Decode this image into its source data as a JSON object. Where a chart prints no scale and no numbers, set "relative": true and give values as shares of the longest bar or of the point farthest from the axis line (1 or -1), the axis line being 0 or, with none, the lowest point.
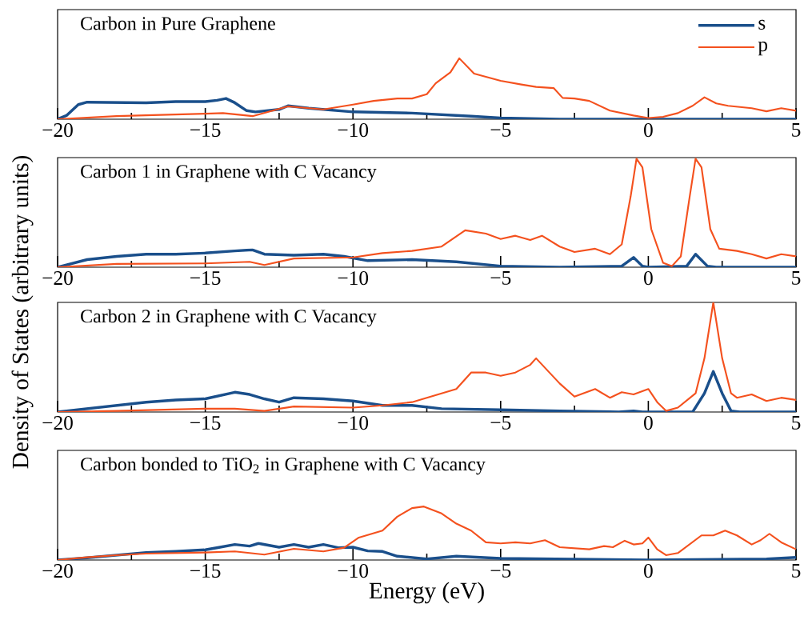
{
  "chart_data": [
    {
      "type": "line",
      "title": "Carbon in Pure Graphene",
      "ylabel": "Density of States (arbitrary units)",
      "relative": true,
      "legend": "top right",
      "xlim": [
        -20,
        5
      ],
      "xticks": [
        {
          "value": -20,
          "label": "−20"
        },
        {
          "value": -15,
          "label": "−15"
        },
        {
          "value": -10,
          "label": "−10"
        },
        {
          "value": -5,
          "label": "−5"
        },
        0,
        5
      ],
      "series": [
        {
          "name": "s",
          "color": "#1a4f8b",
          "x": [
            -20,
            -19.7,
            -19.3,
            -19,
            -17,
            -16,
            -15,
            -14.6,
            -14.3,
            -14,
            -13.6,
            -13.3,
            -12.5,
            -12.2,
            -11.5,
            -10,
            -8,
            -6,
            -5,
            -3,
            5
          ],
          "values": [
            0,
            0.06,
            0.24,
            0.28,
            0.27,
            0.29,
            0.29,
            0.31,
            0.34,
            0.27,
            0.14,
            0.12,
            0.16,
            0.22,
            0.18,
            0.12,
            0.1,
            0.05,
            0.02,
            0,
            0
          ]
        },
        {
          "name": "p",
          "color": "#f4511e",
          "x": [
            -20,
            -18,
            -15,
            -14.4,
            -13.4,
            -12.2,
            -11,
            -10,
            -9.3,
            -8.5,
            -8,
            -7.5,
            -7.2,
            -6.7,
            -6.4,
            -5.9,
            -5,
            -4.3,
            -3.8,
            -3.2,
            -2.9,
            -2.5,
            -2,
            -1.3,
            -0.5,
            0,
            0.5,
            1,
            1.5,
            1.9,
            2.3,
            2.7,
            3.5,
            4,
            4.5,
            5
          ],
          "values": [
            0,
            0.05,
            0.09,
            0.1,
            0.05,
            0.21,
            0.16,
            0.24,
            0.3,
            0.34,
            0.34,
            0.41,
            0.59,
            0.77,
            1.0,
            0.75,
            0.63,
            0.57,
            0.53,
            0.51,
            0.35,
            0.34,
            0.3,
            0.14,
            0.06,
            0.02,
            0.04,
            0.1,
            0.22,
            0.36,
            0.26,
            0.22,
            0.18,
            0.13,
            0.18,
            0.14
          ]
        }
      ]
    },
    {
      "type": "line",
      "title": "Carbon 1 in Graphene with C Vacancy",
      "relative": true,
      "xlim": [
        -20,
        5
      ],
      "xticks": [
        {
          "value": -20,
          "label": "−20"
        },
        {
          "value": -15,
          "label": "−15"
        },
        {
          "value": -10,
          "label": "−10"
        },
        {
          "value": -5,
          "label": "−5"
        },
        0,
        5
      ],
      "series": [
        {
          "color": "#1a4f8b",
          "x": [
            -20,
            -19,
            -18,
            -17,
            -16,
            -15,
            -14,
            -13.4,
            -13,
            -12,
            -11,
            -10.3,
            -9.5,
            -8,
            -6.5,
            -5,
            -3,
            -0.9,
            -0.5,
            -0.2,
            0,
            1.3,
            1.6,
            2,
            2.3,
            5
          ],
          "values": [
            0,
            0.07,
            0.1,
            0.12,
            0.12,
            0.13,
            0.15,
            0.16,
            0.12,
            0.11,
            0.12,
            0.1,
            0.06,
            0.07,
            0.05,
            0.01,
            0,
            0.01,
            0.09,
            0.01,
            0,
            0.01,
            0.12,
            0.01,
            0,
            0
          ]
        },
        {
          "color": "#f4511e",
          "x": [
            -20,
            -18,
            -15,
            -13.5,
            -13,
            -12,
            -10,
            -9,
            -8,
            -7,
            -6.2,
            -5.5,
            -5,
            -4.5,
            -4,
            -3.6,
            -3,
            -2.5,
            -1.8,
            -1.3,
            -0.9,
            -0.6,
            -0.4,
            -0.2,
            0.1,
            0.5,
            0.8,
            1.1,
            1.4,
            1.6,
            1.8,
            2.1,
            2.4,
            3,
            3.5,
            4,
            4.5,
            5
          ],
          "values": [
            0,
            0.03,
            0.035,
            0.05,
            0.02,
            0.08,
            0.09,
            0.13,
            0.15,
            0.19,
            0.34,
            0.31,
            0.26,
            0.29,
            0.25,
            0.29,
            0.19,
            0.14,
            0.17,
            0.12,
            0.21,
            0.65,
            1.0,
            0.92,
            0.35,
            0.04,
            0.01,
            0.1,
            0.65,
            1.0,
            0.92,
            0.35,
            0.17,
            0.15,
            0.12,
            0.08,
            0.12,
            0.1
          ]
        }
      ]
    },
    {
      "type": "line",
      "title": "Carbon 2 in Graphene with C Vacancy",
      "relative": true,
      "xlim": [
        -20,
        5
      ],
      "xticks": [
        {
          "value": -20,
          "label": "−20"
        },
        {
          "value": -15,
          "label": "−15"
        },
        {
          "value": -10,
          "label": "−10"
        },
        {
          "value": -5,
          "label": "−5"
        },
        0,
        5
      ],
      "series": [
        {
          "color": "#1a4f8b",
          "x": [
            -20,
            -19,
            -18,
            -17,
            -16,
            -15,
            -14.5,
            -14,
            -13.5,
            -13,
            -12.5,
            -12,
            -11,
            -10,
            -9,
            -8,
            -7,
            -5,
            -3,
            -1,
            -0.5,
            -0.2,
            1.5,
            1.9,
            2.2,
            2.5,
            2.8,
            3.1,
            5
          ],
          "values": [
            0,
            0.03,
            0.06,
            0.09,
            0.11,
            0.12,
            0.15,
            0.18,
            0.16,
            0.12,
            0.09,
            0.13,
            0.12,
            0.1,
            0.06,
            0.06,
            0.03,
            0.02,
            0.01,
            0,
            0.01,
            0,
            0,
            0.17,
            0.37,
            0.17,
            0.01,
            0,
            0
          ]
        },
        {
          "color": "#f4511e",
          "x": [
            -20,
            -18,
            -15,
            -14,
            -13,
            -12,
            -10,
            -9,
            -8,
            -7,
            -6.5,
            -6,
            -5.5,
            -5,
            -4.5,
            -4,
            -3.8,
            -3,
            -2.5,
            -1.8,
            -1.3,
            -0.9,
            -0.5,
            0,
            0.3,
            0.6,
            1,
            1.6,
            1.9,
            2.2,
            2.5,
            2.8,
            3,
            3.5,
            4,
            4.5,
            5
          ],
          "values": [
            0,
            0.01,
            0.03,
            0.03,
            0.01,
            0.05,
            0.04,
            0.06,
            0.09,
            0.17,
            0.21,
            0.36,
            0.36,
            0.33,
            0.36,
            0.43,
            0.49,
            0.26,
            0.14,
            0.21,
            0.13,
            0.18,
            0.16,
            0.21,
            0.09,
            0.01,
            0.04,
            0.17,
            0.49,
            1.0,
            0.49,
            0.17,
            0.13,
            0.16,
            0.1,
            0.13,
            0.11
          ]
        }
      ]
    },
    {
      "type": "line",
      "title": "Carbon bonded to TiO$_{2}$ in Graphene with C Vacancy",
      "xlabel": "Energy (eV)",
      "relative": true,
      "xlim": [
        -20,
        5
      ],
      "xticks": [
        {
          "value": -20,
          "label": "−20"
        },
        {
          "value": -15,
          "label": "−15"
        },
        {
          "value": -10,
          "label": "−10"
        },
        {
          "value": -5,
          "label": "−5"
        },
        0,
        5
      ],
      "series": [
        {
          "color": "#1a4f8b",
          "x": [
            -20,
            -19,
            -18,
            -17,
            -16,
            -15,
            -14.5,
            -14,
            -13.5,
            -13.2,
            -12.5,
            -12,
            -11.5,
            -11,
            -10.5,
            -10,
            -9.5,
            -9,
            -8.5,
            -7.5,
            -6.5,
            -5,
            0,
            4,
            5
          ],
          "values": [
            0,
            0.04,
            0.09,
            0.14,
            0.16,
            0.19,
            0.24,
            0.29,
            0.26,
            0.31,
            0.24,
            0.29,
            0.24,
            0.29,
            0.23,
            0.24,
            0.17,
            0.16,
            0.07,
            0.02,
            0.07,
            0.03,
            0,
            0.02,
            0.05
          ]
        },
        {
          "color": "#f4511e",
          "x": [
            -20,
            -19,
            -18,
            -17,
            -15,
            -14,
            -13,
            -12,
            -11,
            -10.3,
            -9.8,
            -9,
            -8.5,
            -8,
            -7.6,
            -7,
            -6.5,
            -6,
            -5.5,
            -5,
            -4.5,
            -4,
            -3.5,
            -3,
            -2,
            -1.5,
            -1.2,
            -0.8,
            -0.5,
            -0.2,
            0,
            0.3,
            0.6,
            1,
            1.8,
            2.2,
            2.6,
            3,
            3.5,
            3.8,
            4.1,
            4.5,
            5
          ],
          "values": [
            0,
            0.05,
            0.09,
            0.12,
            0.14,
            0.16,
            0.1,
            0.21,
            0.16,
            0.23,
            0.42,
            0.55,
            0.81,
            0.97,
            1.0,
            0.87,
            0.68,
            0.55,
            0.33,
            0.31,
            0.33,
            0.31,
            0.37,
            0.24,
            0.2,
            0.26,
            0.24,
            0.36,
            0.29,
            0.31,
            0.42,
            0.2,
            0.09,
            0.13,
            0.46,
            0.46,
            0.55,
            0.46,
            0.29,
            0.37,
            0.49,
            0.33,
            0.2
          ]
        }
      ]
    }
  ]
}
